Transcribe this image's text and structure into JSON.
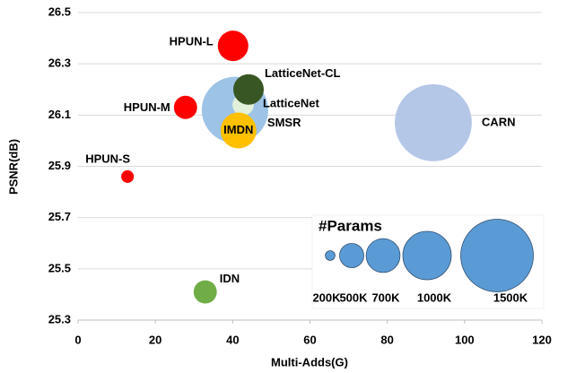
{
  "chart_data": {
    "type": "bubble",
    "xlabel": "Multi-Adds(G)",
    "ylabel": "PSNR(dB)",
    "xlim": [
      0,
      120
    ],
    "xticks": [
      0,
      20,
      40,
      60,
      80,
      100,
      120
    ],
    "ylim": [
      25.3,
      26.5
    ],
    "yticks": [
      25.3,
      25.5,
      25.7,
      25.9,
      26.1,
      26.3,
      26.5
    ],
    "grid": true,
    "series": [
      {
        "name": "CARN",
        "color": "#b4c7e7",
        "x": [
          91.9
        ],
        "values": [
          26.07
        ],
        "sizes": [
          1590
        ]
      },
      {
        "name": "SMSR",
        "color": "#9dc3e6",
        "x": [
          40.6
        ],
        "values": [
          26.12
        ],
        "sizes": [
          1370
        ]
      },
      {
        "name": "LatticeNet",
        "color": "#e2efda",
        "x": [
          42.7
        ],
        "values": [
          26.14
        ],
        "sizes": [
          440
        ]
      },
      {
        "name": "LatticeNet-CL",
        "color": "#375623",
        "x": [
          44.1
        ],
        "values": [
          26.2
        ],
        "sizes": [
          630
        ]
      },
      {
        "name": "IMDN",
        "color": "#ffc000",
        "x": [
          41.5
        ],
        "values": [
          26.04
        ],
        "sizes": [
          740
        ]
      },
      {
        "name": "HPUN-L",
        "color": "#ff0000",
        "x": [
          40.1
        ],
        "values": [
          26.37
        ],
        "sizes": [
          630
        ]
      },
      {
        "name": "HPUN-M",
        "color": "#ff0000",
        "x": [
          27.8
        ],
        "values": [
          26.13
        ],
        "sizes": [
          480
        ]
      },
      {
        "name": "HPUN-S",
        "color": "#ff0000",
        "x": [
          12.8
        ],
        "values": [
          25.86
        ],
        "sizes": [
          260
        ]
      },
      {
        "name": "IDN",
        "color": "#70ad47",
        "x": [
          32.9
        ],
        "values": [
          25.41
        ],
        "sizes": [
          480
        ]
      }
    ],
    "size_legend": {
      "title": "#Params",
      "color": "#5b9bd5",
      "sizes": [
        200,
        500,
        700,
        1000,
        1500
      ],
      "value_labels": [
        "200K",
        "500K",
        "700K",
        "1000K",
        "1500K"
      ]
    }
  }
}
